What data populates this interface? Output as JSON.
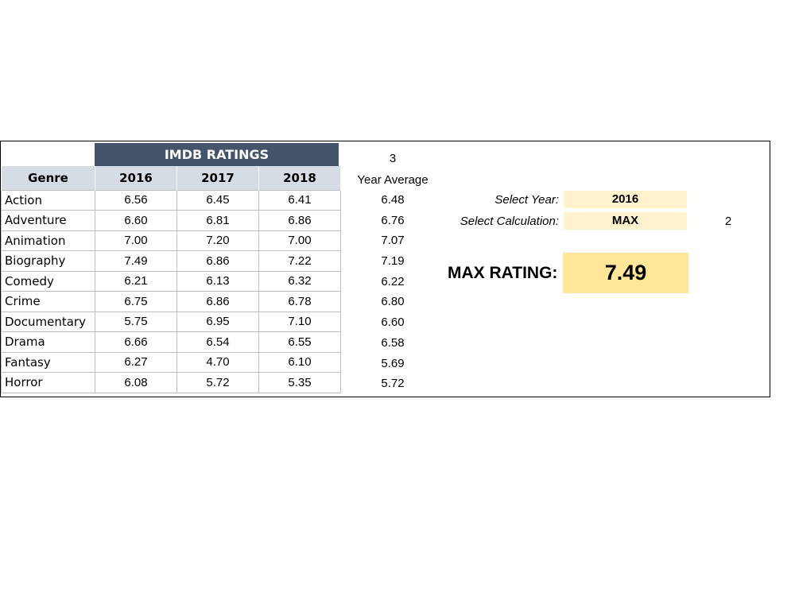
{
  "header": {
    "title": "IMDB RATINGS",
    "three": "3",
    "year_average_label": "Year Average"
  },
  "table": {
    "columns": [
      "Genre",
      "2016",
      "2017",
      "2018"
    ],
    "rows": [
      {
        "genre": "Action",
        "y2016": "6.56",
        "y2017": "6.45",
        "y2018": "6.41",
        "avg": "6.48"
      },
      {
        "genre": "Adventure",
        "y2016": "6.60",
        "y2017": "6.81",
        "y2018": "6.86",
        "avg": "6.76"
      },
      {
        "genre": "Animation",
        "y2016": "7.00",
        "y2017": "7.20",
        "y2018": "7.00",
        "avg": "7.07"
      },
      {
        "genre": "Biography",
        "y2016": "7.49",
        "y2017": "6.86",
        "y2018": "7.22",
        "avg": "7.19"
      },
      {
        "genre": "Comedy",
        "y2016": "6.21",
        "y2017": "6.13",
        "y2018": "6.32",
        "avg": "6.22"
      },
      {
        "genre": "Crime",
        "y2016": "6.75",
        "y2017": "6.86",
        "y2018": "6.78",
        "avg": "6.80"
      },
      {
        "genre": "Documentary",
        "y2016": "5.75",
        "y2017": "6.95",
        "y2018": "7.10",
        "avg": "6.60"
      },
      {
        "genre": "Drama",
        "y2016": "6.66",
        "y2017": "6.54",
        "y2018": "6.55",
        "avg": "6.58"
      },
      {
        "genre": "Fantasy",
        "y2016": "6.27",
        "y2017": "4.70",
        "y2018": "6.10",
        "avg": "5.69"
      },
      {
        "genre": "Horror",
        "y2016": "6.08",
        "y2017": "5.72",
        "y2018": "5.35",
        "avg": "5.72"
      }
    ]
  },
  "controls": {
    "select_year_label": "Select Year:",
    "select_year_value": "2016",
    "select_calc_label": "Select Calculation:",
    "select_calc_value": "MAX",
    "calc_index": "2"
  },
  "result": {
    "label": "MAX RATING:",
    "value": "7.49"
  },
  "colors": {
    "header_bg": "#44546a",
    "column_header_bg": "#d6dce4",
    "input_bg": "#fff2cc",
    "result_bg": "#ffe699"
  }
}
